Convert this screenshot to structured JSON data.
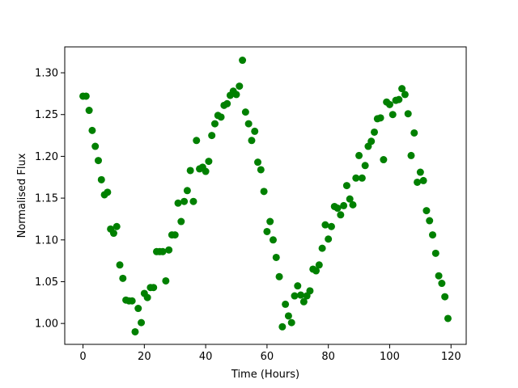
{
  "chart_data": {
    "type": "scatter",
    "xlabel": "Time (Hours)",
    "ylabel": "Normalised Flux",
    "color": "#008000",
    "x": [
      0,
      1,
      2,
      3,
      4,
      5,
      6,
      7,
      8,
      9,
      10,
      11,
      12,
      13,
      14,
      15,
      16,
      17,
      18,
      19,
      20,
      21,
      22,
      23,
      24,
      25,
      26,
      27,
      28,
      29,
      30,
      31,
      32,
      33,
      34,
      35,
      36,
      37,
      38,
      39,
      40,
      41,
      42,
      43,
      44,
      45,
      46,
      47,
      48,
      49,
      50,
      51,
      52,
      53,
      54,
      55,
      56,
      57,
      58,
      59,
      60,
      61,
      62,
      63,
      64,
      65,
      66,
      67,
      68,
      69,
      70,
      71,
      72,
      73,
      74,
      75,
      76,
      77,
      78,
      79,
      80,
      81,
      82,
      83,
      84,
      85,
      86,
      87,
      88,
      89,
      90,
      91,
      92,
      93,
      94,
      95,
      96,
      97,
      98,
      99,
      100,
      101,
      102,
      103,
      104,
      105,
      106,
      107,
      108,
      109,
      110,
      111,
      112,
      113,
      114,
      115,
      116,
      117,
      118,
      119
    ],
    "values": [
      1.272,
      1.272,
      1.255,
      1.231,
      1.212,
      1.195,
      1.172,
      1.154,
      1.157,
      1.113,
      1.108,
      1.116,
      1.07,
      1.054,
      1.028,
      1.027,
      1.027,
      0.99,
      1.018,
      1.001,
      1.036,
      1.031,
      1.043,
      1.043,
      1.086,
      1.086,
      1.086,
      1.051,
      1.088,
      1.106,
      1.106,
      1.144,
      1.122,
      1.146,
      1.159,
      1.183,
      1.146,
      1.219,
      1.185,
      1.187,
      1.182,
      1.194,
      1.225,
      1.239,
      1.249,
      1.247,
      1.261,
      1.263,
      1.273,
      1.278,
      1.274,
      1.284,
      1.315,
      1.253,
      1.239,
      1.219,
      1.23,
      1.193,
      1.184,
      1.158,
      1.11,
      1.122,
      1.1,
      1.079,
      1.056,
      0.996,
      1.023,
      1.009,
      1.001,
      1.033,
      1.045,
      1.034,
      1.026,
      1.033,
      1.039,
      1.065,
      1.063,
      1.07,
      1.09,
      1.118,
      1.101,
      1.116,
      1.14,
      1.138,
      1.13,
      1.141,
      1.165,
      1.149,
      1.142,
      1.174,
      1.201,
      1.174,
      1.189,
      1.212,
      1.218,
      1.229,
      1.245,
      1.246,
      1.196,
      1.265,
      1.262,
      1.25,
      1.267,
      1.268,
      1.281,
      1.274,
      1.251,
      1.201,
      1.228,
      1.169,
      1.181,
      1.171,
      1.135,
      1.123,
      1.106,
      1.084,
      1.057,
      1.048,
      1.032,
      1.006
    ],
    "xlim": [
      -5.95,
      124.95
    ],
    "ylim": [
      0.975,
      1.331
    ],
    "xticks": [
      0,
      20,
      40,
      60,
      80,
      100,
      120
    ],
    "yticks": [
      {
        "value": 1,
        "label": "1.00"
      },
      1.05,
      {
        "value": 1.1,
        "label": "1.10"
      },
      1.15,
      {
        "value": 1.2,
        "label": "1.20"
      },
      1.25,
      {
        "value": 1.3,
        "label": "1.30"
      }
    ]
  }
}
